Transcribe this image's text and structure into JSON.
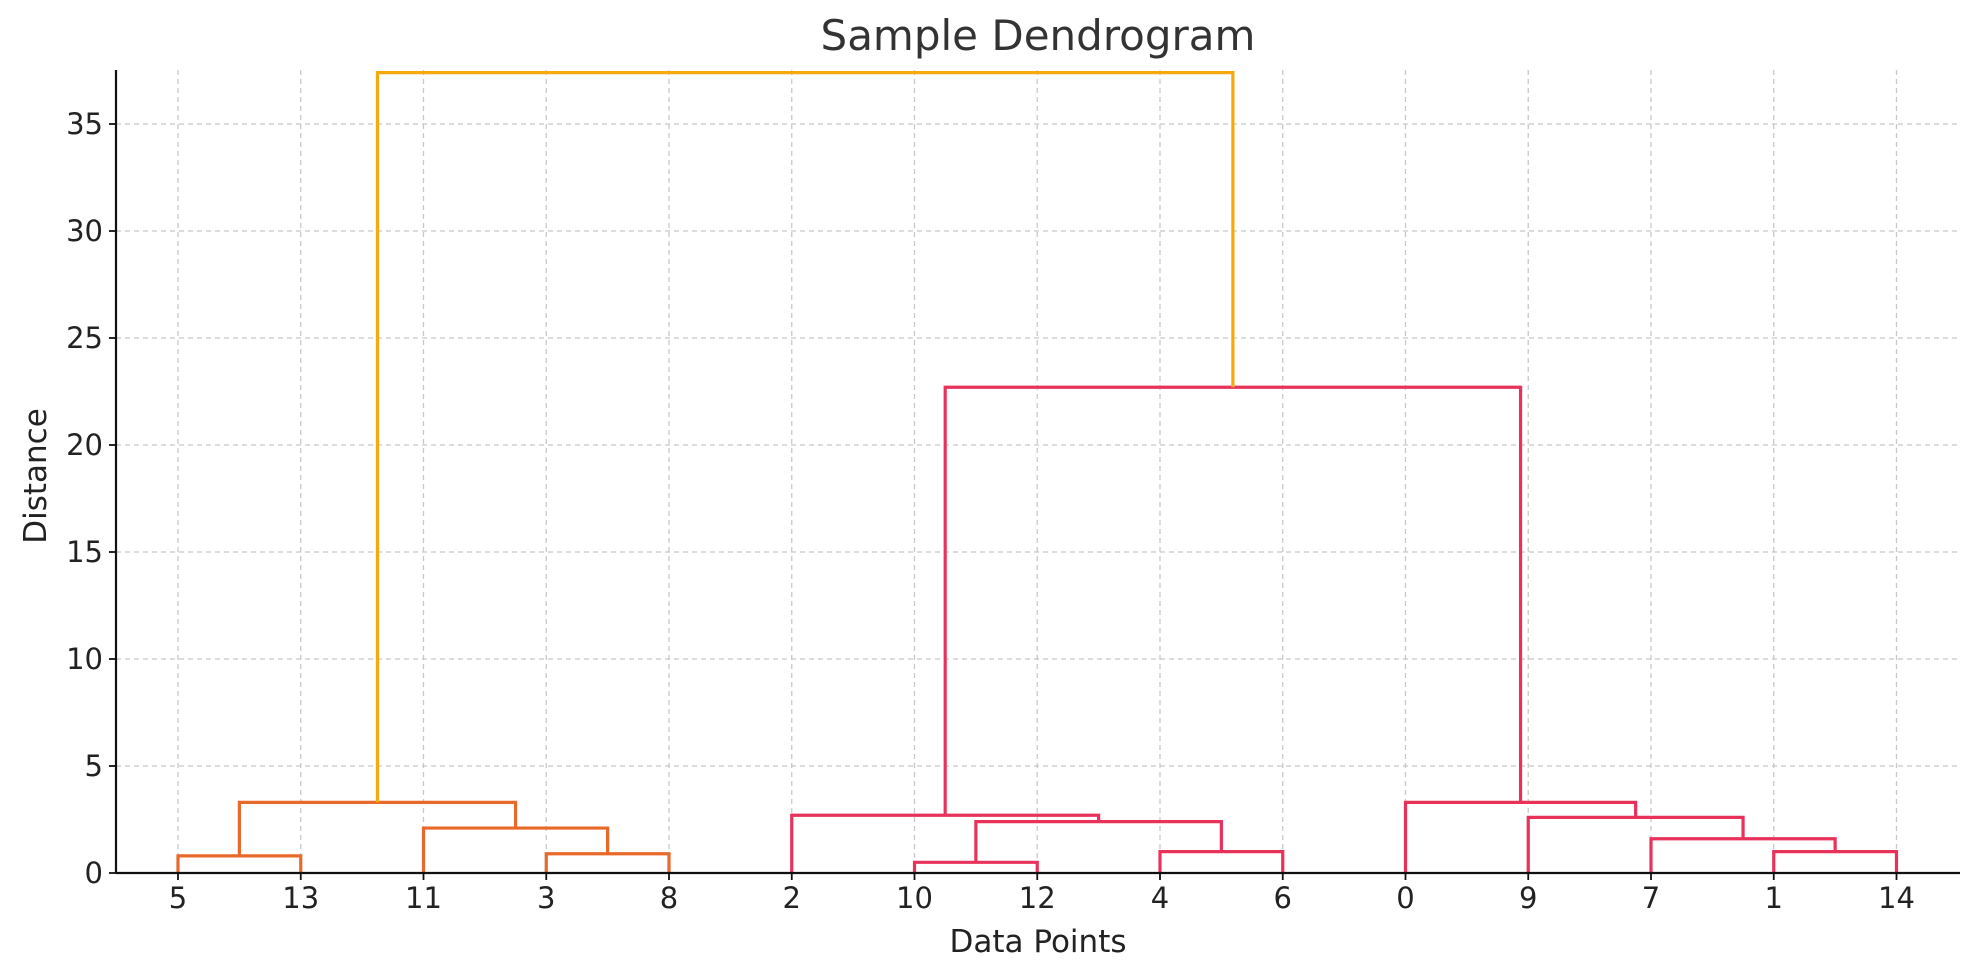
{
  "chart_data": {
    "type": "dendrogram",
    "title": "Sample Dendrogram",
    "xlabel": "Data Points",
    "ylabel": "Distance",
    "leaf_order": [
      "5",
      "13",
      "11",
      "3",
      "8",
      "2",
      "10",
      "12",
      "4",
      "6",
      "0",
      "9",
      "7",
      "1",
      "14"
    ],
    "ylim": [
      0,
      39
    ],
    "yticks": [
      0,
      5,
      10,
      15,
      20,
      25,
      30,
      35
    ],
    "grid": true,
    "colors": {
      "cluster_1": "#E8692A",
      "cluster_2": "#E8325A",
      "root": "#F5A810",
      "axis": "#111111",
      "grid": "#c8c8c8"
    },
    "links": [
      {
        "left": "5",
        "right": "13",
        "height": 0.8,
        "color": "cluster_1"
      },
      {
        "left": "3",
        "right": "8",
        "height": 0.9,
        "color": "cluster_1"
      },
      {
        "left": "11",
        "right": "(3,8)",
        "height": 2.1,
        "color": "cluster_1"
      },
      {
        "left": "(5,13)",
        "right": "(11,(3,8))",
        "height": 3.3,
        "color": "cluster_1"
      },
      {
        "left": "10",
        "right": "12",
        "height": 0.5,
        "color": "cluster_2"
      },
      {
        "left": "4",
        "right": "6",
        "height": 1.0,
        "color": "cluster_2"
      },
      {
        "left": "(10,12)",
        "right": "(4,6)",
        "height": 2.4,
        "color": "cluster_2"
      },
      {
        "left": "2",
        "right": "((10,12),(4,6))",
        "height": 2.7,
        "color": "cluster_2"
      },
      {
        "left": "1",
        "right": "14",
        "height": 1.0,
        "color": "cluster_2"
      },
      {
        "left": "7",
        "right": "(1,14)",
        "height": 1.6,
        "color": "cluster_2"
      },
      {
        "left": "9",
        "right": "(7,(1,14))",
        "height": 2.6,
        "color": "cluster_2"
      },
      {
        "left": "0",
        "right": "(9,(7,(1,14)))",
        "height": 3.3,
        "color": "cluster_2"
      },
      {
        "left": "(2,...)",
        "right": "(0,...)",
        "height": 22.7,
        "color": "cluster_2"
      },
      {
        "left": "cluster_1",
        "right": "cluster_2",
        "height": 37.4,
        "color": "root"
      }
    ]
  }
}
